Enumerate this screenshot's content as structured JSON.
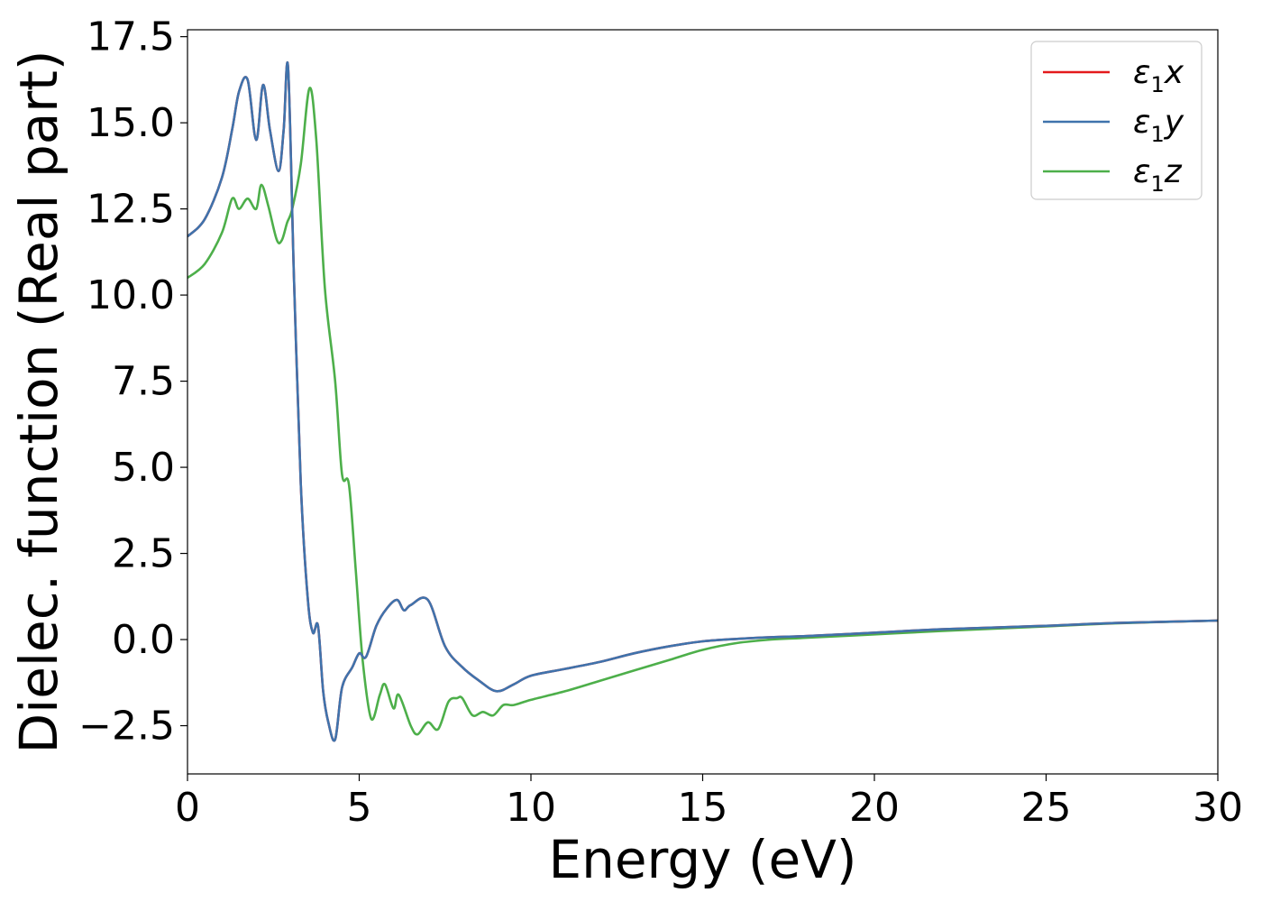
{
  "chart_data": {
    "type": "line",
    "xlabel": "Energy (eV)",
    "ylabel": "Dielec. function (Real part)",
    "xlim": [
      0,
      30
    ],
    "ylim": [
      -3.9,
      17.7
    ],
    "x_ticks": [
      0,
      5,
      10,
      15,
      20,
      25,
      30
    ],
    "x_tick_labels": [
      "0",
      "5",
      "10",
      "15",
      "20",
      "25",
      "30"
    ],
    "y_ticks": [
      -2.5,
      0.0,
      2.5,
      5.0,
      7.5,
      10.0,
      12.5,
      15.0,
      17.5
    ],
    "y_tick_labels": [
      "−2.5",
      "0.0",
      "2.5",
      "5.0",
      "7.5",
      "10.0",
      "12.5",
      "15.0",
      "17.5"
    ],
    "grid": false,
    "legend_position": "top-right",
    "series": [
      {
        "name": "ε₁x",
        "legend": {
          "symbol": "ε",
          "sub": "1",
          "var": "x"
        },
        "color": "#e41a1c",
        "x": [
          0,
          0.5,
          1.0,
          1.3,
          1.5,
          1.75,
          2.0,
          2.2,
          2.4,
          2.65,
          2.8,
          2.93,
          3.1,
          3.3,
          3.5,
          3.65,
          3.8,
          3.95,
          4.1,
          4.3,
          4.5,
          4.8,
          5.0,
          5.2,
          5.5,
          5.8,
          6.1,
          6.3,
          6.5,
          7.0,
          7.5,
          8.0,
          8.5,
          9.0,
          9.5,
          10.0,
          11.0,
          12.0,
          13.0,
          14.0,
          15.0,
          16.0,
          17.0,
          18.0,
          20.0,
          22.0,
          25.0,
          27.0,
          30.0
        ],
        "values": [
          11.7,
          12.2,
          13.4,
          14.8,
          15.9,
          16.25,
          14.5,
          16.1,
          14.8,
          13.6,
          14.8,
          16.6,
          10.5,
          4.5,
          1.2,
          0.2,
          0.4,
          -1.5,
          -2.4,
          -2.9,
          -1.4,
          -0.8,
          -0.4,
          -0.5,
          0.4,
          0.9,
          1.15,
          0.85,
          1.0,
          1.15,
          -0.2,
          -0.8,
          -1.2,
          -1.5,
          -1.3,
          -1.05,
          -0.85,
          -0.65,
          -0.4,
          -0.2,
          -0.05,
          0.02,
          0.07,
          0.1,
          0.2,
          0.3,
          0.4,
          0.48,
          0.55
        ]
      },
      {
        "name": "ε₁y",
        "legend": {
          "symbol": "ε",
          "sub": "1",
          "var": "y"
        },
        "color": "#3f73ac",
        "x": [
          0,
          0.5,
          1.0,
          1.3,
          1.5,
          1.75,
          2.0,
          2.2,
          2.4,
          2.65,
          2.8,
          2.93,
          3.1,
          3.3,
          3.5,
          3.65,
          3.8,
          3.95,
          4.1,
          4.3,
          4.5,
          4.8,
          5.0,
          5.2,
          5.5,
          5.8,
          6.1,
          6.3,
          6.5,
          7.0,
          7.5,
          8.0,
          8.5,
          9.0,
          9.5,
          10.0,
          11.0,
          12.0,
          13.0,
          14.0,
          15.0,
          16.0,
          17.0,
          18.0,
          20.0,
          22.0,
          25.0,
          27.0,
          30.0
        ],
        "values": [
          11.7,
          12.2,
          13.4,
          14.8,
          15.9,
          16.25,
          14.5,
          16.1,
          14.8,
          13.6,
          14.8,
          16.6,
          10.5,
          4.5,
          1.2,
          0.2,
          0.4,
          -1.5,
          -2.4,
          -2.9,
          -1.4,
          -0.8,
          -0.4,
          -0.5,
          0.4,
          0.9,
          1.15,
          0.85,
          1.0,
          1.15,
          -0.2,
          -0.8,
          -1.2,
          -1.5,
          -1.3,
          -1.05,
          -0.85,
          -0.65,
          -0.4,
          -0.2,
          -0.05,
          0.02,
          0.07,
          0.1,
          0.2,
          0.3,
          0.4,
          0.48,
          0.55
        ]
      },
      {
        "name": "ε₁z",
        "legend": {
          "symbol": "ε",
          "sub": "1",
          "var": "z"
        },
        "color": "#4daf4a",
        "x": [
          0,
          0.5,
          1.0,
          1.3,
          1.5,
          1.75,
          2.0,
          2.15,
          2.35,
          2.6,
          2.75,
          2.9,
          3.05,
          3.3,
          3.55,
          3.75,
          4.0,
          4.3,
          4.5,
          4.7,
          4.9,
          5.1,
          5.35,
          5.6,
          5.75,
          6.0,
          6.15,
          6.5,
          6.7,
          7.0,
          7.3,
          7.6,
          7.85,
          8.0,
          8.3,
          8.6,
          8.9,
          9.2,
          9.5,
          10.0,
          11.0,
          12.0,
          13.0,
          14.0,
          15.0,
          16.0,
          17.0,
          18.0,
          20.0,
          22.0,
          25.0,
          27.0,
          30.0
        ],
        "values": [
          10.5,
          10.9,
          11.8,
          12.8,
          12.5,
          12.8,
          12.5,
          13.2,
          12.6,
          11.6,
          11.6,
          12.1,
          12.5,
          13.8,
          16.0,
          14.5,
          10.2,
          7.5,
          4.8,
          4.5,
          2.0,
          -0.6,
          -2.3,
          -1.6,
          -1.3,
          -2.0,
          -1.6,
          -2.5,
          -2.75,
          -2.4,
          -2.6,
          -1.8,
          -1.7,
          -1.7,
          -2.2,
          -2.1,
          -2.2,
          -1.9,
          -1.9,
          -1.75,
          -1.5,
          -1.2,
          -0.9,
          -0.6,
          -0.3,
          -0.1,
          0.0,
          0.05,
          0.15,
          0.25,
          0.38,
          0.47,
          0.55
        ]
      }
    ]
  }
}
